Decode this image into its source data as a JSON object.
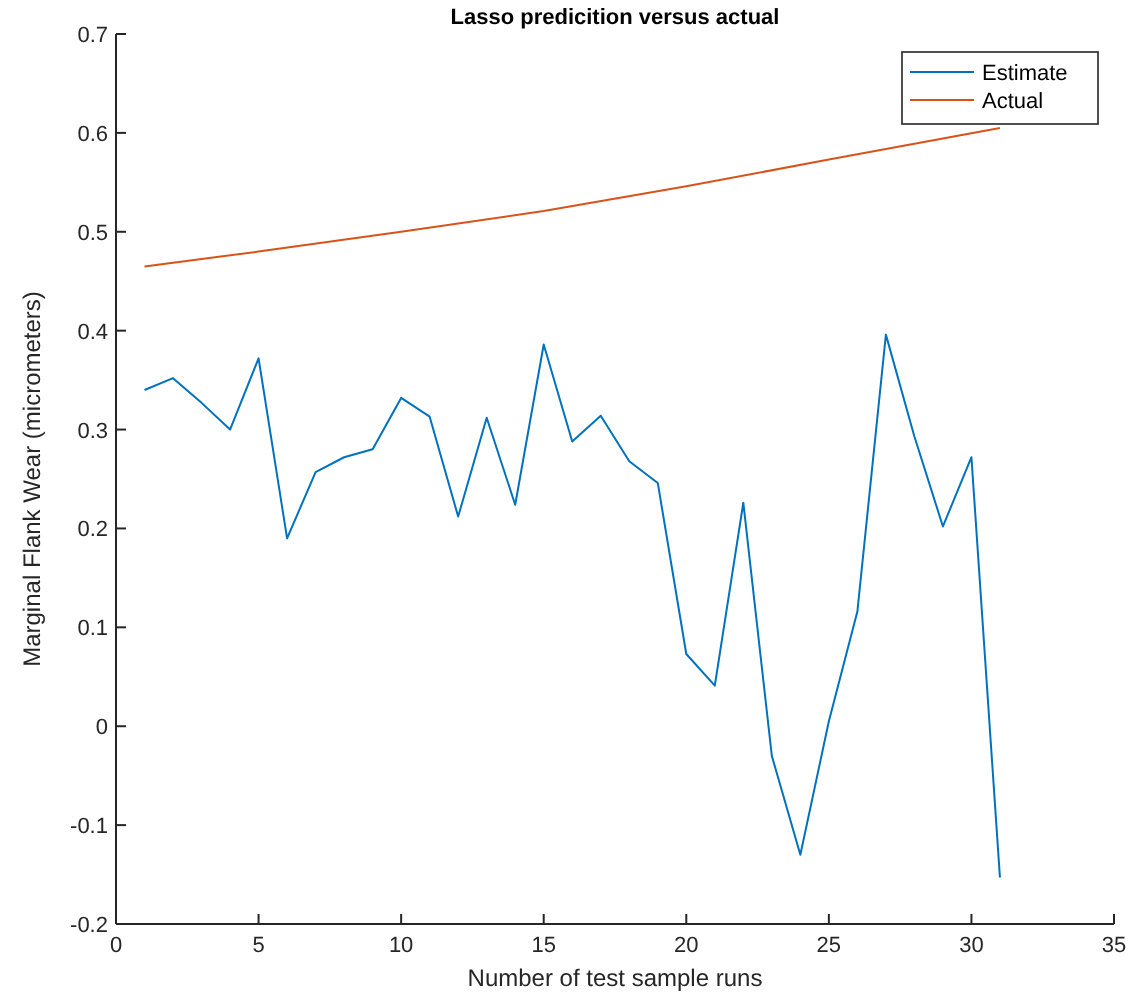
{
  "chart_data": {
    "type": "line",
    "title": "Lasso predicition versus actual",
    "xlabel": "Number of test sample runs",
    "ylabel": "Marginal Flank Wear (micrometers)",
    "xlim": [
      0,
      35
    ],
    "xticks": [
      0,
      5,
      10,
      15,
      20,
      25,
      30,
      35
    ],
    "ylim": [
      -0.2,
      0.7
    ],
    "yticks": [
      -0.2,
      -0.1,
      0,
      0.1,
      0.2,
      0.3,
      0.4,
      0.5,
      0.6,
      0.7
    ],
    "legend": "top right",
    "grid": false,
    "series": [
      {
        "name": "Estimate",
        "color": "#0072bd",
        "x": [
          1,
          2,
          3,
          4,
          5,
          6,
          7,
          8,
          9,
          10,
          11,
          12,
          13,
          14,
          15,
          16,
          17,
          18,
          19,
          20,
          21,
          22,
          23,
          24,
          25,
          26,
          27,
          28,
          29,
          30,
          31
        ],
        "values": [
          0.34,
          0.352,
          0.327,
          0.3,
          0.372,
          0.19,
          0.257,
          0.272,
          0.28,
          0.332,
          0.313,
          0.212,
          0.312,
          0.224,
          0.386,
          0.288,
          0.314,
          0.268,
          0.246,
          0.073,
          0.041,
          0.226,
          -0.03,
          -0.13,
          0.005,
          0.116,
          0.396,
          0.293,
          0.202,
          0.272,
          -0.153
        ]
      },
      {
        "name": "Actual",
        "color": "#d95319",
        "x": [
          1,
          5,
          10,
          15,
          20,
          25,
          31
        ],
        "values": [
          0.465,
          0.48,
          0.5,
          0.521,
          0.546,
          0.573,
          0.605
        ]
      }
    ]
  }
}
